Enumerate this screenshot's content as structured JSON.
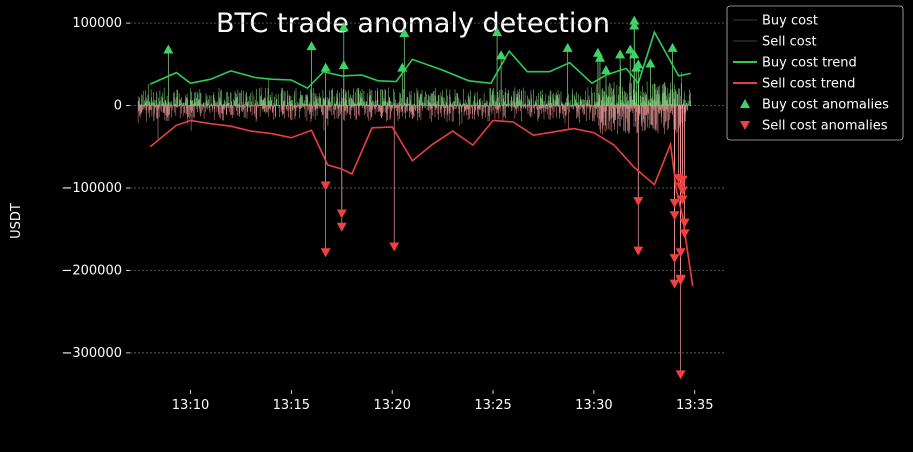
{
  "chart_data": {
    "type": "line",
    "title": "BTC trade anomaly detection",
    "xlabel": "",
    "ylabel": "USDT",
    "xlim": [
      "13:07",
      "13:36.5"
    ],
    "ylim": [
      -345000,
      128000
    ],
    "grid": "horizontal dashed",
    "legend_position": "top-right, outside plot",
    "x_ticks": [
      "13:10",
      "13:15",
      "13:20",
      "13:25",
      "13:30",
      "13:35"
    ],
    "y_ticks": [
      100000,
      0,
      -100000,
      -200000,
      -300000
    ],
    "y_tick_labels": [
      "100000",
      "0",
      "−100000",
      "−200000",
      "−300000"
    ],
    "colors": {
      "buy_cost": "#2a2a2a",
      "sell_cost": "#2a2a2a",
      "buy_bars": "#8ee08a",
      "sell_bars": "#f09a9a",
      "buy_trend": "#2ecc55",
      "sell_trend": "#e84040",
      "buy_anomalies": "#3ed465",
      "sell_anomalies": "#f04040",
      "grid": "#777777"
    },
    "legend": [
      {
        "key": "buy_cost",
        "label": "Buy cost",
        "marker": "line"
      },
      {
        "key": "sell_cost",
        "label": "Sell cost",
        "marker": "line"
      },
      {
        "key": "buy_trend",
        "label": "Buy cost trend",
        "marker": "line"
      },
      {
        "key": "sell_trend",
        "label": "Sell cost trend",
        "marker": "line"
      },
      {
        "key": "buy_anomalies",
        "label": "Buy cost anomalies",
        "marker": "triangle-up"
      },
      {
        "key": "sell_anomalies",
        "label": "Sell cost anomalies",
        "marker": "triangle-down"
      }
    ],
    "series": [
      {
        "name": "Buy cost trend",
        "points": [
          [
            "13:08.0",
            26000
          ],
          [
            "13:09.3",
            40000
          ],
          [
            "13:10.0",
            27000
          ],
          [
            "13:11.0",
            32000
          ],
          [
            "13:12.0",
            42000
          ],
          [
            "13:13.2",
            34000
          ],
          [
            "13:14.0",
            32000
          ],
          [
            "13:15.0",
            31000
          ],
          [
            "13:15.8",
            21000
          ],
          [
            "13:16.6",
            41000
          ],
          [
            "13:17.5",
            36000
          ],
          [
            "13:18.5",
            37000
          ],
          [
            "13:19.3",
            30000
          ],
          [
            "13:20.2",
            29000
          ],
          [
            "13:21.0",
            56000
          ],
          [
            "13:22.5",
            43000
          ],
          [
            "13:23.8",
            30000
          ],
          [
            "13:24.9",
            27000
          ],
          [
            "13:25.8",
            66000
          ],
          [
            "13:26.7",
            41000
          ],
          [
            "13:27.8",
            41000
          ],
          [
            "13:28.8",
            52000
          ],
          [
            "13:29.9",
            27000
          ],
          [
            "13:30.6",
            37000
          ],
          [
            "13:31.6",
            45000
          ],
          [
            "13:32.2",
            27000
          ],
          [
            "13:33.0",
            89000
          ],
          [
            "13:34.2",
            36000
          ],
          [
            "13:34.8",
            39000
          ]
        ]
      },
      {
        "name": "Sell cost trend",
        "points": [
          [
            "13:08.0",
            -50000
          ],
          [
            "13:09.3",
            -24000
          ],
          [
            "13:10.0",
            -18000
          ],
          [
            "13:11.0",
            -22000
          ],
          [
            "13:12.0",
            -25000
          ],
          [
            "13:13.0",
            -31000
          ],
          [
            "13:14.0",
            -34000
          ],
          [
            "13:15.0",
            -39000
          ],
          [
            "13:16.0",
            -30000
          ],
          [
            "13:16.8",
            -72000
          ],
          [
            "13:17.5",
            -77000
          ],
          [
            "13:18.0",
            -83000
          ],
          [
            "13:19.0",
            -27000
          ],
          [
            "13:20.0",
            -26000
          ],
          [
            "13:21.0",
            -67000
          ],
          [
            "13:22.0",
            -47000
          ],
          [
            "13:23.0",
            -31000
          ],
          [
            "13:24.0",
            -48000
          ],
          [
            "13:25.0",
            -18000
          ],
          [
            "13:26.0",
            -20000
          ],
          [
            "13:27.0",
            -36000
          ],
          [
            "13:28.0",
            -32000
          ],
          [
            "13:29.0",
            -28000
          ],
          [
            "13:30.0",
            -33000
          ],
          [
            "13:31.0",
            -48000
          ],
          [
            "13:32.0",
            -75000
          ],
          [
            "13:33.0",
            -96000
          ],
          [
            "13:33.8",
            -47000
          ],
          [
            "13:34.1",
            -104000
          ],
          [
            "13:34.4",
            -134000
          ],
          [
            "13:34.6",
            -170000
          ],
          [
            "13:34.9",
            -219000
          ]
        ]
      },
      {
        "name": "Buy cost anomalies",
        "points": [
          [
            "13:08.9",
            68000
          ],
          [
            "13:16.0",
            72000
          ],
          [
            "13:16.7",
            46000
          ],
          [
            "13:17.6",
            95000
          ],
          [
            "13:17.6",
            49000
          ],
          [
            "13:20.6",
            88000
          ],
          [
            "13:20.5",
            46000
          ],
          [
            "13:25.2",
            89000
          ],
          [
            "13:25.4",
            61000
          ],
          [
            "13:28.7",
            70000
          ],
          [
            "13:30.2",
            64000
          ],
          [
            "13:30.3",
            58000
          ],
          [
            "13:30.6",
            43000
          ],
          [
            "13:31.3",
            62000
          ],
          [
            "13:31.8",
            68000
          ],
          [
            "13:32.0",
            103000
          ],
          [
            "13:32.0",
            97000
          ],
          [
            "13:32.0",
            62000
          ],
          [
            "13:32.1",
            46000
          ],
          [
            "13:32.2",
            50000
          ],
          [
            "13:32.8",
            51000
          ],
          [
            "13:33.9",
            70000
          ]
        ]
      },
      {
        "name": "Sell cost anomalies",
        "points": [
          [
            "13:16.7",
            -97000
          ],
          [
            "13:16.7",
            -178000
          ],
          [
            "13:17.5",
            -131000
          ],
          [
            "13:17.5",
            -147000
          ],
          [
            "13:20.1",
            -171000
          ],
          [
            "13:32.2",
            -116000
          ],
          [
            "13:32.2",
            -176000
          ],
          [
            "13:34.0",
            -118000
          ],
          [
            "13:34.0",
            -133000
          ],
          [
            "13:34.0",
            -185000
          ],
          [
            "13:34.0",
            -216000
          ],
          [
            "13:34.2",
            -88000
          ],
          [
            "13:34.3",
            -98000
          ],
          [
            "13:34.3",
            -178000
          ],
          [
            "13:34.3",
            -210000
          ],
          [
            "13:34.3",
            -212000
          ],
          [
            "13:34.3",
            -326000
          ],
          [
            "13:34.4",
            -90000
          ],
          [
            "13:34.4",
            -103000
          ],
          [
            "13:34.4",
            -114000
          ],
          [
            "13:34.5",
            -142000
          ],
          [
            "13:34.5",
            -155000
          ]
        ]
      }
    ]
  }
}
